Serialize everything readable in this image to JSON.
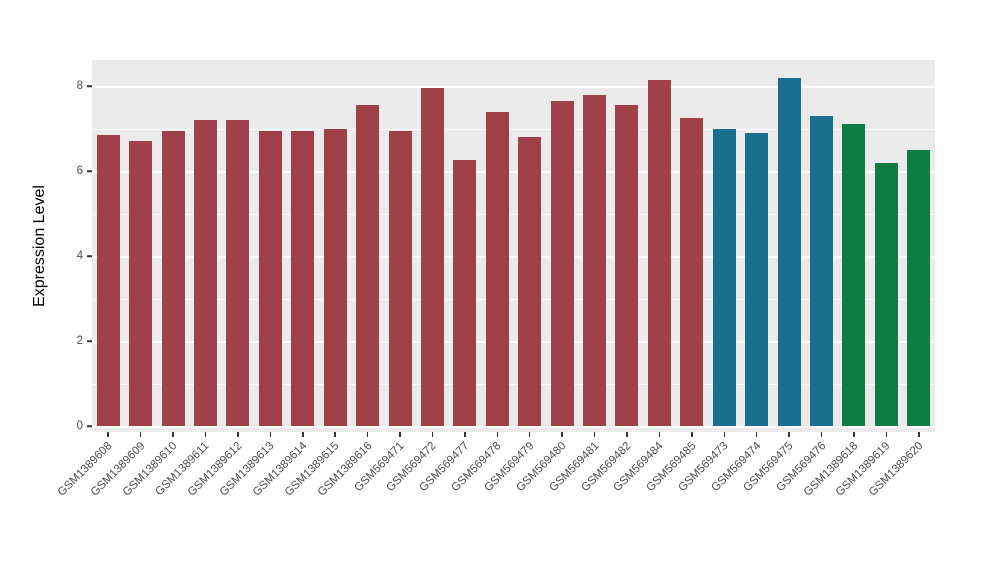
{
  "chart_data": {
    "type": "bar",
    "title": "",
    "xlabel": "",
    "ylabel": "Expression Level",
    "ylim": [
      0,
      8.6
    ],
    "yticks": [
      0,
      2,
      4,
      6,
      8
    ],
    "yticks_minor": [
      1,
      3,
      5,
      7
    ],
    "grid": "on",
    "legend": "none",
    "panel_background": "#EBEBEB",
    "grid_color": "#FFFFFF",
    "group_colors": {
      "red": "#A04048",
      "teal": "#1B6F8E",
      "green": "#0E7C45"
    },
    "bars": [
      {
        "label": "GSM1389608",
        "value": 6.85,
        "group": "red"
      },
      {
        "label": "GSM1389609",
        "value": 6.7,
        "group": "red"
      },
      {
        "label": "GSM1389610",
        "value": 6.95,
        "group": "red"
      },
      {
        "label": "GSM1389611",
        "value": 7.2,
        "group": "red"
      },
      {
        "label": "GSM1389612",
        "value": 7.2,
        "group": "red"
      },
      {
        "label": "GSM1389613",
        "value": 6.95,
        "group": "red"
      },
      {
        "label": "GSM1389614",
        "value": 6.95,
        "group": "red"
      },
      {
        "label": "GSM1389615",
        "value": 7.0,
        "group": "red"
      },
      {
        "label": "GSM1389616",
        "value": 7.55,
        "group": "red"
      },
      {
        "label": "GSM569471",
        "value": 6.95,
        "group": "red"
      },
      {
        "label": "GSM569472",
        "value": 7.95,
        "group": "red"
      },
      {
        "label": "GSM569477",
        "value": 6.25,
        "group": "red"
      },
      {
        "label": "GSM569478",
        "value": 7.4,
        "group": "red"
      },
      {
        "label": "GSM569479",
        "value": 6.8,
        "group": "red"
      },
      {
        "label": "GSM569480",
        "value": 7.65,
        "group": "red"
      },
      {
        "label": "GSM569481",
        "value": 7.8,
        "group": "red"
      },
      {
        "label": "GSM569482",
        "value": 7.55,
        "group": "red"
      },
      {
        "label": "GSM569484",
        "value": 8.15,
        "group": "red"
      },
      {
        "label": "GSM569485",
        "value": 7.25,
        "group": "red"
      },
      {
        "label": "GSM569473",
        "value": 7.0,
        "group": "teal"
      },
      {
        "label": "GSM569474",
        "value": 6.9,
        "group": "teal"
      },
      {
        "label": "GSM569475",
        "value": 8.2,
        "group": "teal"
      },
      {
        "label": "GSM569476",
        "value": 7.3,
        "group": "teal"
      },
      {
        "label": "GSM1389618",
        "value": 7.1,
        "group": "green"
      },
      {
        "label": "GSM1389619",
        "value": 6.2,
        "group": "green"
      },
      {
        "label": "GSM1389620",
        "value": 6.5,
        "group": "green"
      }
    ]
  }
}
